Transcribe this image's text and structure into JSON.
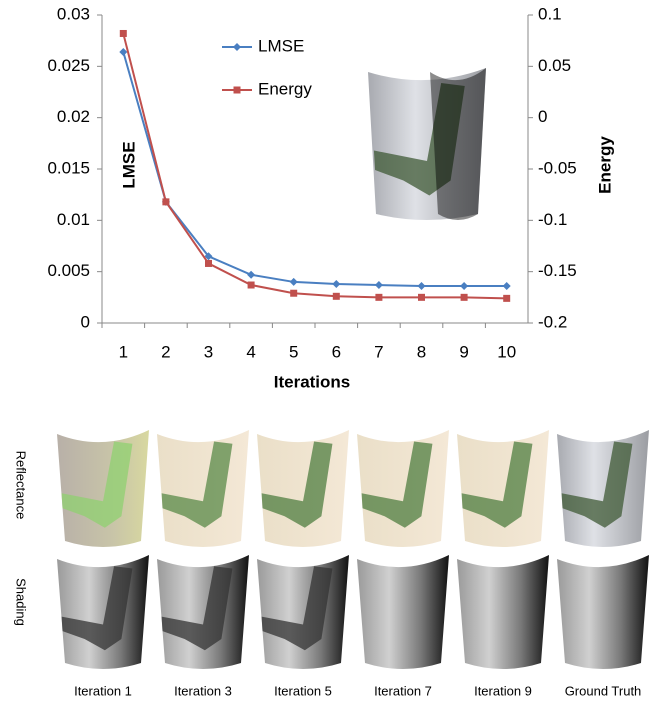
{
  "chart_data": {
    "type": "line",
    "x_label": "Iterations",
    "y_label": "LMSE",
    "y2_label": "Energy",
    "categories": [
      "1",
      "2",
      "3",
      "4",
      "5",
      "6",
      "7",
      "8",
      "9",
      "10"
    ],
    "series": [
      {
        "name": "LMSE",
        "color": "#4a7fc1",
        "values": [
          0.0264,
          0.0118,
          0.0065,
          0.0047,
          0.004,
          0.0038,
          0.0037,
          0.0036,
          0.0036,
          0.0036
        ]
      },
      {
        "name": "Energy",
        "color": "#c0504d",
        "axis": "y2",
        "values": [
          0.082,
          -0.082,
          -0.142,
          -0.163,
          -0.171,
          -0.174,
          -0.175,
          -0.175,
          -0.175,
          -0.176
        ]
      }
    ],
    "ylim": [
      0,
      0.03
    ],
    "yticks": [
      0,
      0.005,
      0.01,
      0.015,
      0.02,
      0.025,
      0.03
    ],
    "y2lim": [
      -0.2,
      0.1
    ],
    "y2ticks": [
      -0.2,
      -0.15,
      -0.1,
      -0.05,
      0,
      0.05,
      0.1
    ],
    "grid": false,
    "legend": "top-left"
  },
  "figure": {
    "row_labels": [
      "Reflectance",
      "Shading"
    ],
    "column_labels": [
      "Iteration  1",
      "Iteration  3",
      "Iteration  5",
      "Iteration  7",
      "Iteration  9",
      "Ground Truth"
    ]
  }
}
